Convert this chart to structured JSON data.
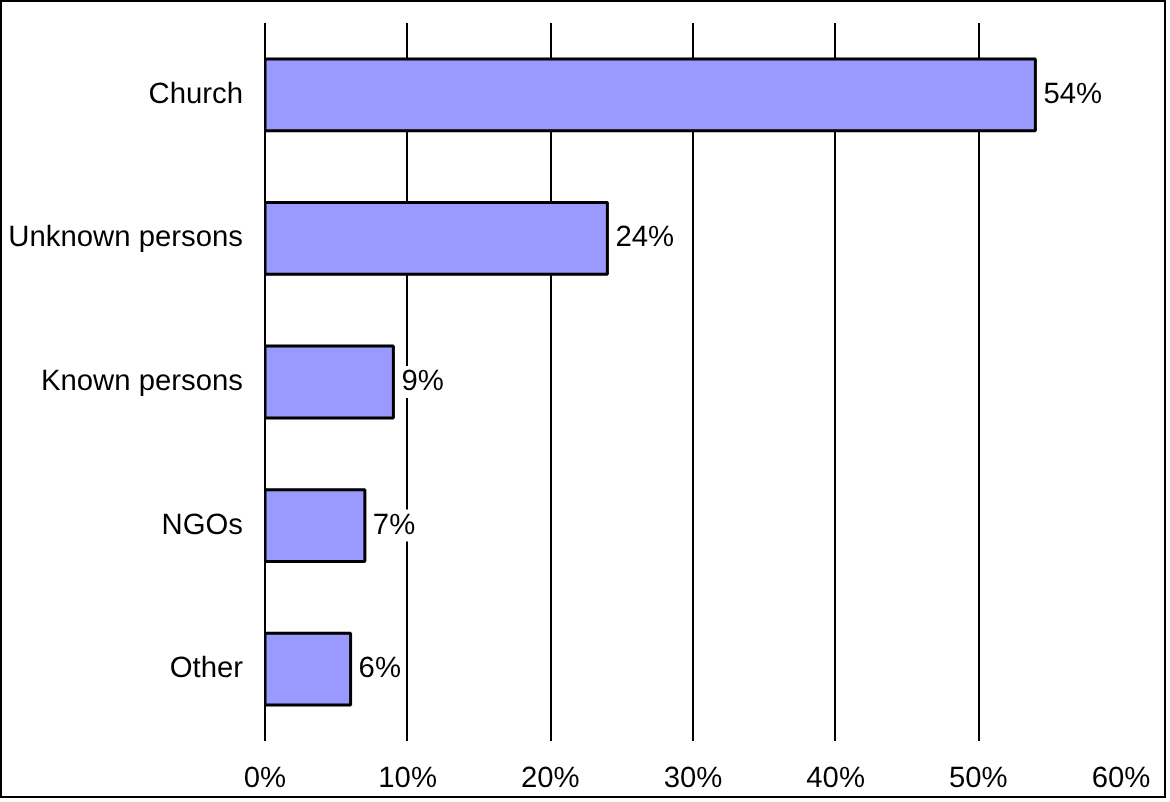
{
  "chart_data": {
    "type": "bar",
    "orientation": "horizontal",
    "categories": [
      "Church",
      "Unknown persons",
      "Known persons",
      "NGOs",
      "Other"
    ],
    "values": [
      54,
      24,
      9,
      7,
      6
    ],
    "value_labels": [
      "54%",
      "24%",
      "9%",
      "7%",
      "6%"
    ],
    "color": "#9999ff",
    "xlim": [
      0,
      60
    ],
    "xticks": [
      {
        "value": 0,
        "label": "0%"
      },
      {
        "value": 10,
        "label": "10%"
      },
      {
        "value": 20,
        "label": "20%"
      },
      {
        "value": 30,
        "label": "30%"
      },
      {
        "value": 40,
        "label": "40%"
      },
      {
        "value": 50,
        "label": "50%"
      },
      {
        "value": 60,
        "label": "60%"
      }
    ],
    "grid": "x"
  }
}
